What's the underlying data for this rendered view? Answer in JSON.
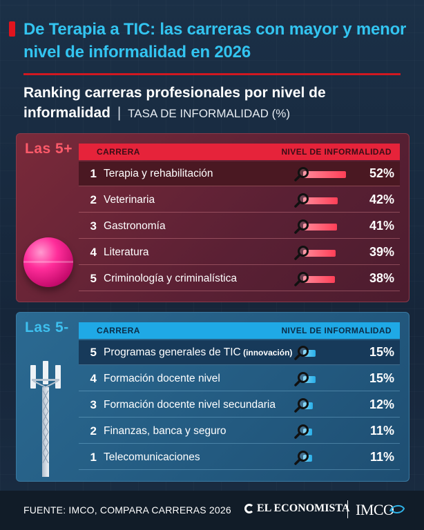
{
  "header": {
    "title": "De Terapia a TIC: las carreras con mayor y menor nivel de informalidad en 2026",
    "subtitle": "Ranking carreras profesionales por nivel de informalidad",
    "subtitle_separator": "|",
    "subtitle_unit": "TASA DE INFORMALIDAD (%)"
  },
  "top_panel": {
    "label": "Las 5+",
    "col_career": "CARRERA",
    "col_level": "NIVEL DE INFORMALIDAD",
    "accent": "#e6233a"
  },
  "bottom_panel": {
    "label": "Las 5-",
    "col_career": "CARRERA",
    "col_level": "NIVEL DE INFORMALIDAD",
    "accent": "#1fa9e6"
  },
  "chart_data": [
    {
      "type": "bar",
      "title": "Las 5+",
      "categories": [
        "Terapia y rehabilitación",
        "Veterinaria",
        "Gastronomía",
        "Literatura",
        "Criminología y criminalística"
      ],
      "ranks": [
        "1",
        "2",
        "3",
        "4",
        "5"
      ],
      "values": [
        52,
        42,
        41,
        39,
        38
      ],
      "labels": [
        "52%",
        "42%",
        "41%",
        "39%",
        "38%"
      ],
      "ylim": [
        0,
        60
      ]
    },
    {
      "type": "bar",
      "title": "Las 5-",
      "categories": [
        "Programas generales de TIC",
        "Formación docente nivel",
        "Formación docente nivel secundaria",
        "Finanzas, banca y seguro",
        "Telecomunicaciones"
      ],
      "category_notes": [
        "(innovación)",
        "",
        "",
        "",
        ""
      ],
      "ranks": [
        "5",
        "4",
        "3",
        "2",
        "1"
      ],
      "values": [
        15,
        15,
        12,
        11,
        11
      ],
      "labels": [
        "15%",
        "15%",
        "12%",
        "11%",
        "11%"
      ],
      "ylim": [
        0,
        60
      ]
    }
  ],
  "footer": {
    "source": "FUENTE: IMCO, COMPARA CARRERAS 2026",
    "brand": "EL ECONOMISTA",
    "partner": "IMCO"
  },
  "icons": {
    "magnifier": "magnifier-icon",
    "ball": "exercise-ball-icon",
    "tower": "antenna-tower-icon"
  }
}
